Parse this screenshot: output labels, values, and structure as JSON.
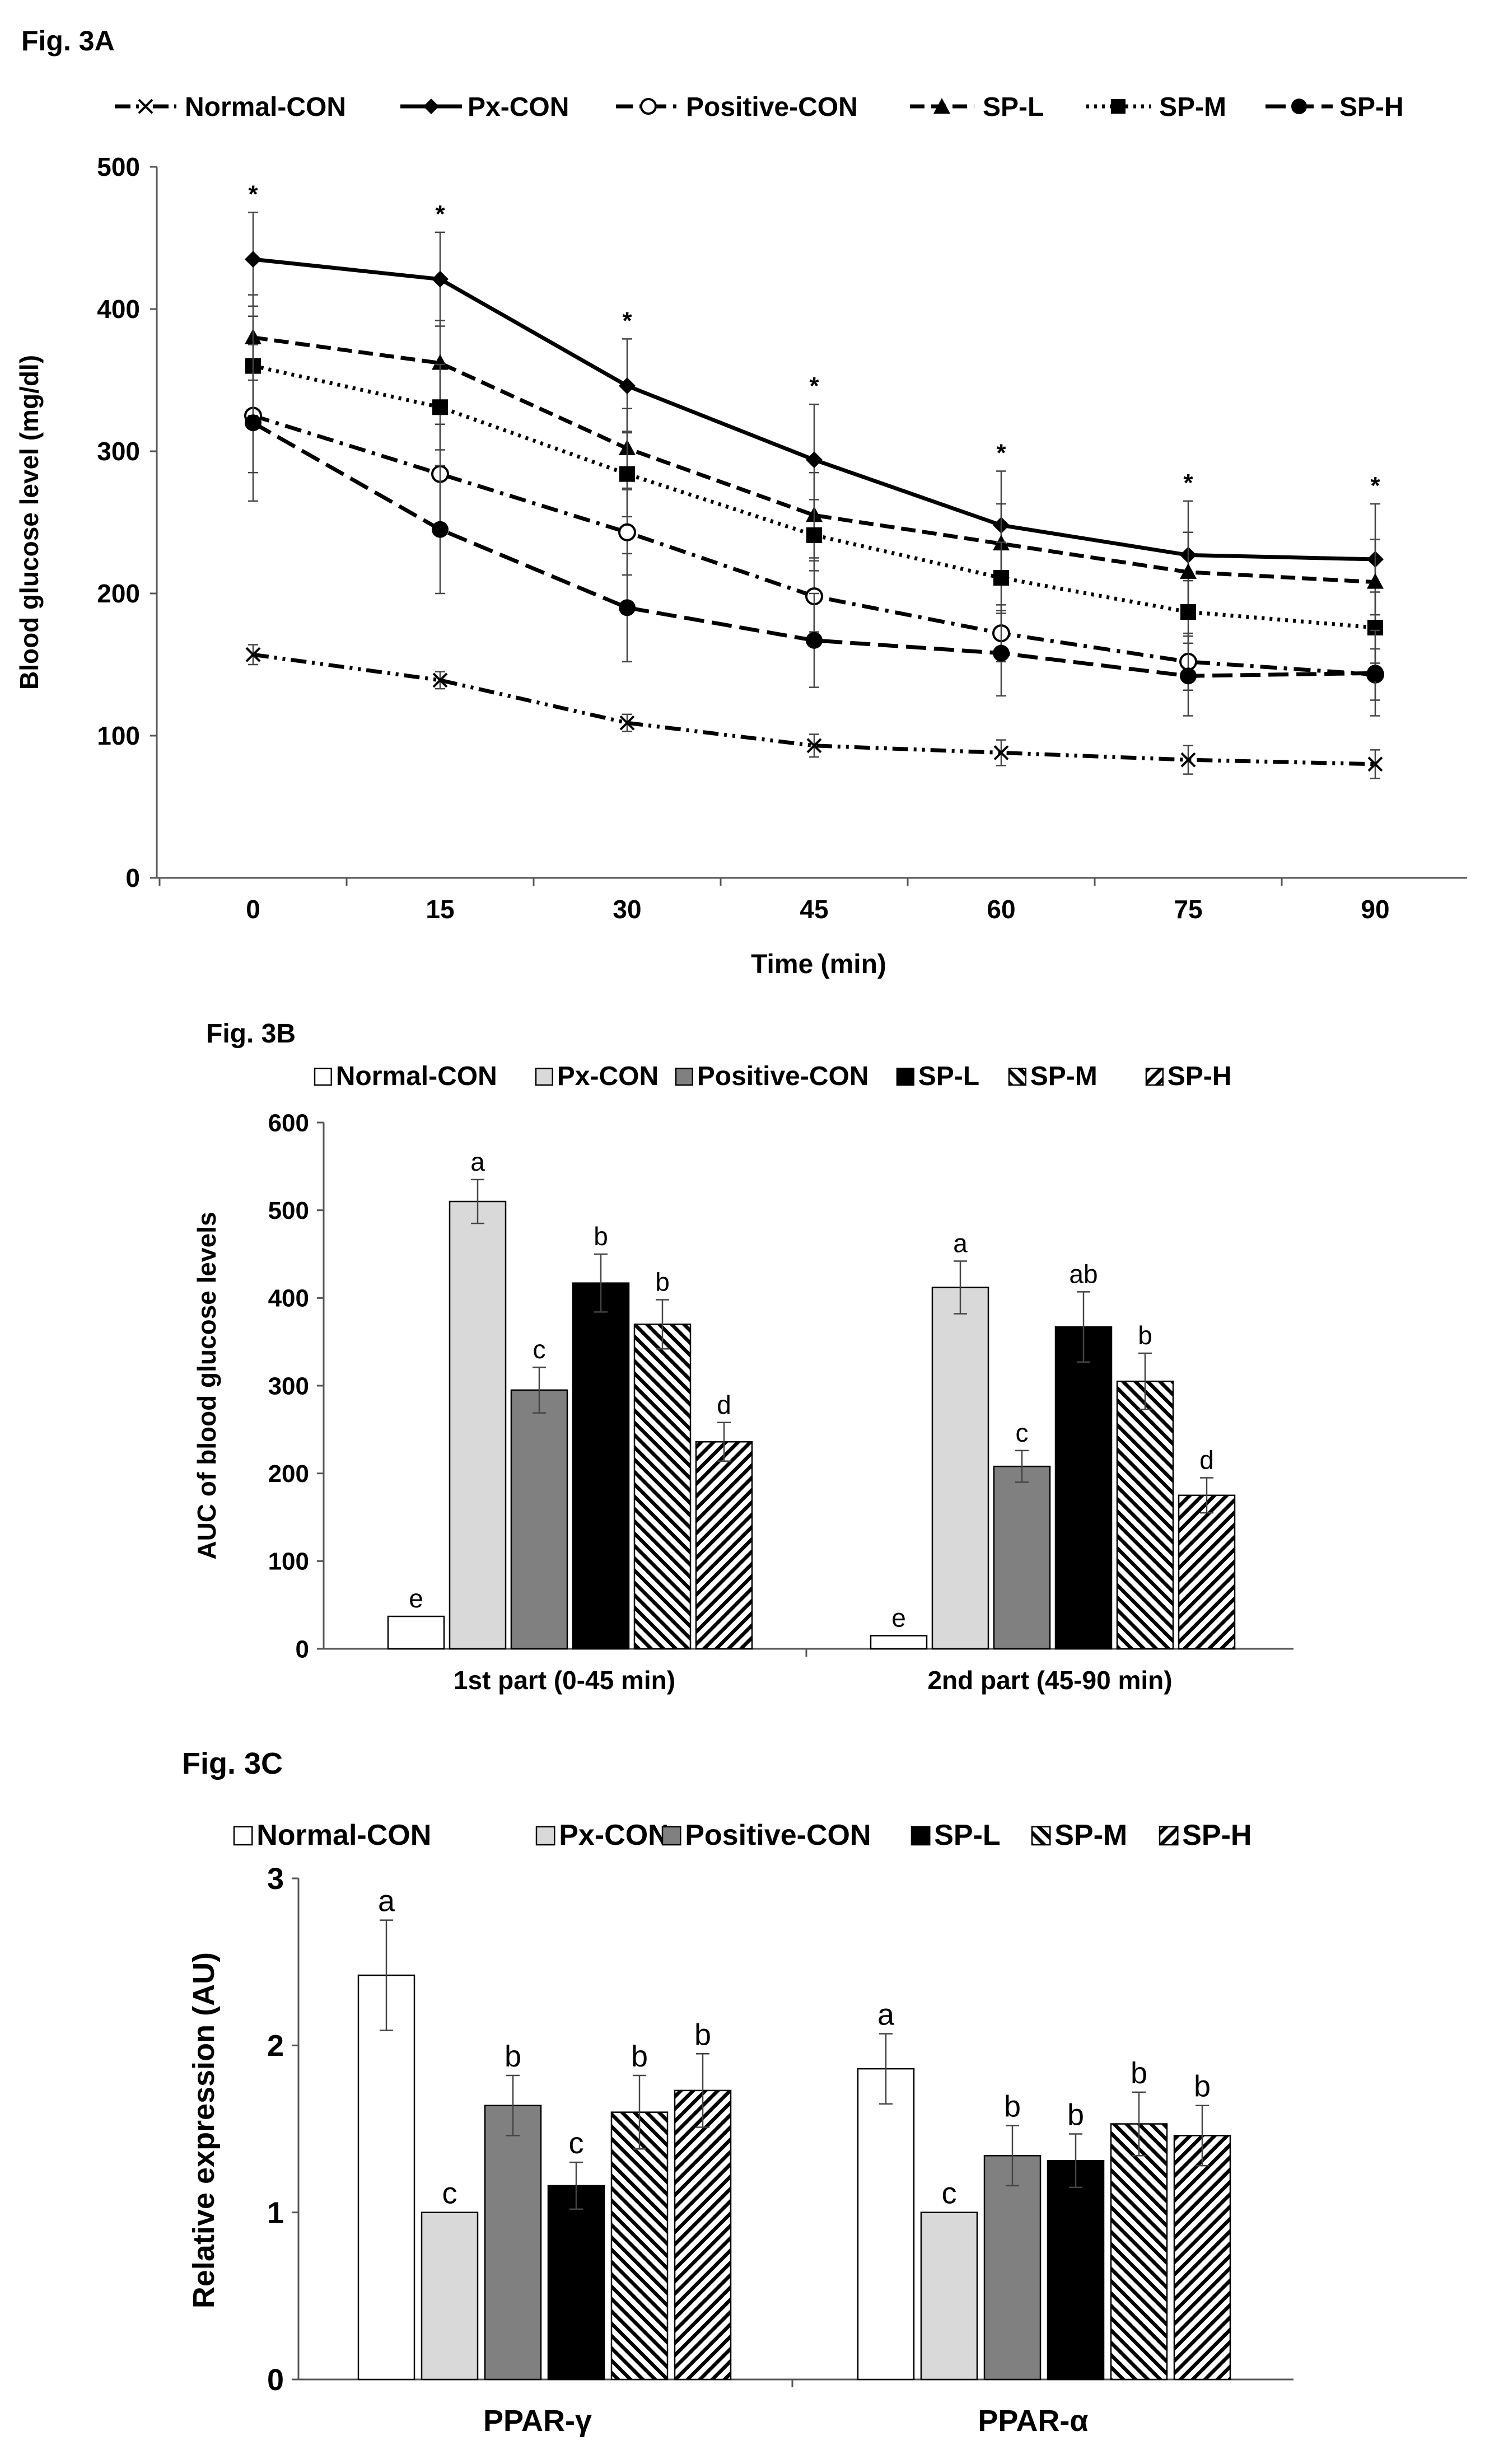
{
  "chart_data": [
    {
      "panel_label": "Fig. 3A",
      "type": "line",
      "xlabel": "Time (min)",
      "ylabel": "Blood glucose level (mg/dl)",
      "x": [
        0,
        15,
        30,
        45,
        60,
        75,
        90
      ],
      "x_tick_labels": [
        "0",
        "15",
        "30",
        "45",
        "60",
        "75",
        "90"
      ],
      "ylim": [
        0,
        500
      ],
      "y_ticks": [
        "0",
        "100",
        "200",
        "300",
        "400",
        "500"
      ],
      "significance_marker": "*",
      "legend_position": "top",
      "series": [
        {
          "name": "Normal-CON",
          "values": [
            157,
            139,
            109,
            93,
            88,
            83,
            80
          ],
          "errors": [
            7,
            6,
            6,
            8,
            9,
            10,
            10
          ],
          "dash": "dashdotdot",
          "marker": "x"
        },
        {
          "name": "Px-CON",
          "values": [
            435,
            421,
            346,
            294,
            248,
            227,
            224
          ],
          "errors": [
            33,
            33,
            33,
            39,
            38,
            38,
            39
          ],
          "dash": "solid",
          "marker": "diamond"
        },
        {
          "name": "Positive-CON",
          "values": [
            325,
            284,
            243,
            198,
            172,
            152,
            143
          ],
          "errors": [
            40,
            35,
            30,
            25,
            20,
            20,
            18
          ],
          "dash": "dashdot",
          "marker": "circle-open"
        },
        {
          "name": "SP-L",
          "values": [
            380,
            362,
            302,
            255,
            235,
            215,
            208
          ],
          "errors": [
            30,
            30,
            28,
            30,
            28,
            28,
            30
          ],
          "dash": "dash",
          "marker": "triangle"
        },
        {
          "name": "SP-M",
          "values": [
            360,
            331,
            284,
            241,
            211,
            187,
            176
          ],
          "errors": [
            35,
            30,
            30,
            25,
            25,
            22,
            25
          ],
          "dash": "dot",
          "marker": "square"
        },
        {
          "name": "SP-H",
          "values": [
            320,
            245,
            190,
            167,
            158,
            142,
            144
          ],
          "errors": [
            55,
            45,
            38,
            33,
            30,
            28,
            30
          ],
          "dash": "longdash",
          "marker": "circle"
        }
      ]
    },
    {
      "panel_label": "Fig. 3B",
      "type": "bar",
      "xlabel": "",
      "ylabel": "AUC of blood glucose levels",
      "categories": [
        "1st part (0-45 min)",
        "2nd part (45-90 min)"
      ],
      "ylim": [
        0,
        600
      ],
      "y_ticks": [
        "0",
        "100",
        "200",
        "300",
        "400",
        "500",
        "600"
      ],
      "legend_position": "top",
      "series": [
        {
          "name": "Normal-CON",
          "values": [
            37,
            15
          ],
          "errors": [
            0,
            0
          ],
          "letters": [
            "e",
            "e"
          ],
          "fill": "white"
        },
        {
          "name": "Px-CON",
          "values": [
            510,
            412
          ],
          "errors": [
            25,
            30
          ],
          "letters": [
            "a",
            "a"
          ],
          "fill": "lightgray"
        },
        {
          "name": "Positive-CON",
          "values": [
            295,
            208
          ],
          "errors": [
            26,
            18
          ],
          "letters": [
            "c",
            "c"
          ],
          "fill": "gray"
        },
        {
          "name": "SP-L",
          "values": [
            417,
            367
          ],
          "errors": [
            33,
            40
          ],
          "letters": [
            "b",
            "ab"
          ],
          "fill": "black"
        },
        {
          "name": "SP-M",
          "values": [
            370,
            305
          ],
          "errors": [
            28,
            32
          ],
          "letters": [
            "b",
            "b"
          ],
          "fill": "hatch-back"
        },
        {
          "name": "SP-H",
          "values": [
            236,
            175
          ],
          "errors": [
            22,
            20
          ],
          "letters": [
            "d",
            "d"
          ],
          "fill": "hatch-forward"
        }
      ]
    },
    {
      "panel_label": "Fig. 3C",
      "type": "bar",
      "xlabel": "",
      "ylabel": "Relative expression (AU)",
      "categories": [
        "PPAR-γ",
        "PPAR-α"
      ],
      "ylim": [
        0,
        3
      ],
      "y_ticks": [
        "0",
        "1",
        "2",
        "3"
      ],
      "legend_position": "top",
      "series": [
        {
          "name": "Normal-CON",
          "values": [
            2.42,
            1.86
          ],
          "errors": [
            0.33,
            0.21
          ],
          "letters": [
            "a",
            "a"
          ],
          "fill": "white"
        },
        {
          "name": "Px-CON",
          "values": [
            1.0,
            1.0
          ],
          "errors": [
            0,
            0
          ],
          "letters": [
            "c",
            "c"
          ],
          "fill": "lightgray"
        },
        {
          "name": "Positive-CON",
          "values": [
            1.64,
            1.34
          ],
          "errors": [
            0.18,
            0.18
          ],
          "letters": [
            "b",
            "b"
          ],
          "fill": "gray"
        },
        {
          "name": "SP-L",
          "values": [
            1.16,
            1.31
          ],
          "errors": [
            0.14,
            0.16
          ],
          "letters": [
            "c",
            "b"
          ],
          "fill": "black"
        },
        {
          "name": "SP-M",
          "values": [
            1.6,
            1.53
          ],
          "errors": [
            0.22,
            0.19
          ],
          "letters": [
            "b",
            "b"
          ],
          "fill": "hatch-back"
        },
        {
          "name": "SP-H",
          "values": [
            1.73,
            1.46
          ],
          "errors": [
            0.22,
            0.18
          ],
          "letters": [
            "b",
            "b"
          ],
          "fill": "hatch-forward"
        }
      ]
    }
  ]
}
